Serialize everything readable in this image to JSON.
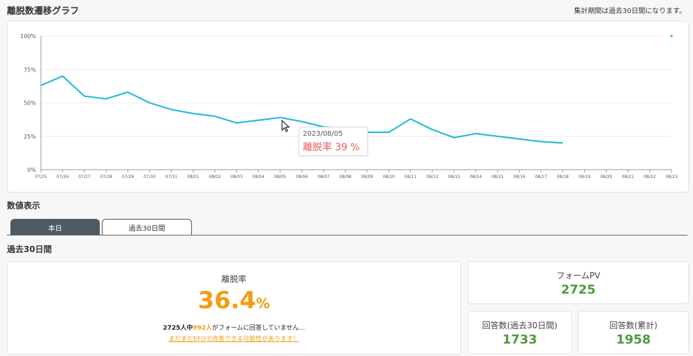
{
  "header": {
    "title": "離脱数遷移グラフ",
    "period_note": "集計期間は過去30日間になります。"
  },
  "chart_data": {
    "type": "line",
    "x": [
      "07/25",
      "07/26",
      "07/27",
      "07/28",
      "07/29",
      "07/30",
      "07/31",
      "08/01",
      "08/02",
      "08/03",
      "08/04",
      "08/05",
      "08/06",
      "08/07",
      "08/08",
      "08/09",
      "08/10",
      "08/11",
      "08/12",
      "08/13",
      "08/14",
      "08/15",
      "08/16",
      "08/17",
      "08/18",
      "08/19",
      "08/20",
      "08/21",
      "08/22",
      "08/23"
    ],
    "series": [
      {
        "values": [
          63,
          70,
          55,
          53,
          58,
          50,
          45,
          42,
          40,
          35,
          37,
          39,
          36,
          32,
          31,
          28,
          28,
          38,
          30,
          24,
          27,
          25,
          23,
          21,
          20,
          null,
          null,
          null,
          null,
          100
        ]
      }
    ],
    "y_ticks": [
      "0%",
      "25%",
      "50%",
      "75%",
      "100%"
    ],
    "ylim": [
      0,
      100
    ],
    "grid": true,
    "color": "#26bcd7",
    "tooltip": {
      "date": "2023/08/05",
      "label": "離脱率 39 %"
    }
  },
  "stats_section": {
    "label": "数値表示",
    "tabs": [
      {
        "label": "本日",
        "active": false
      },
      {
        "label": "過去30日間",
        "active": true
      }
    ],
    "sub_label": "過去30日間"
  },
  "rate_card": {
    "label": "離脱率",
    "value": "36.4",
    "unit": "%",
    "total": "2725",
    "total_suffix": "人中",
    "left": "992人",
    "tail": "がフォームに回答していません...",
    "link": "まだまだEFOで改善できる可能性があります！"
  },
  "pv_card": {
    "label": "フォームPV",
    "value": "2725"
  },
  "answers30_card": {
    "label": "回答数(過去30日間)",
    "value": "1733"
  },
  "answers_total_card": {
    "label": "回答数(累計)",
    "value": "1958"
  },
  "colors": {
    "accent": "#f39c12",
    "line": "#26bcd7",
    "stat": "#4f9a3d",
    "tab_dark": "#4f5a63",
    "tooltip_value": "#e85c5c"
  }
}
